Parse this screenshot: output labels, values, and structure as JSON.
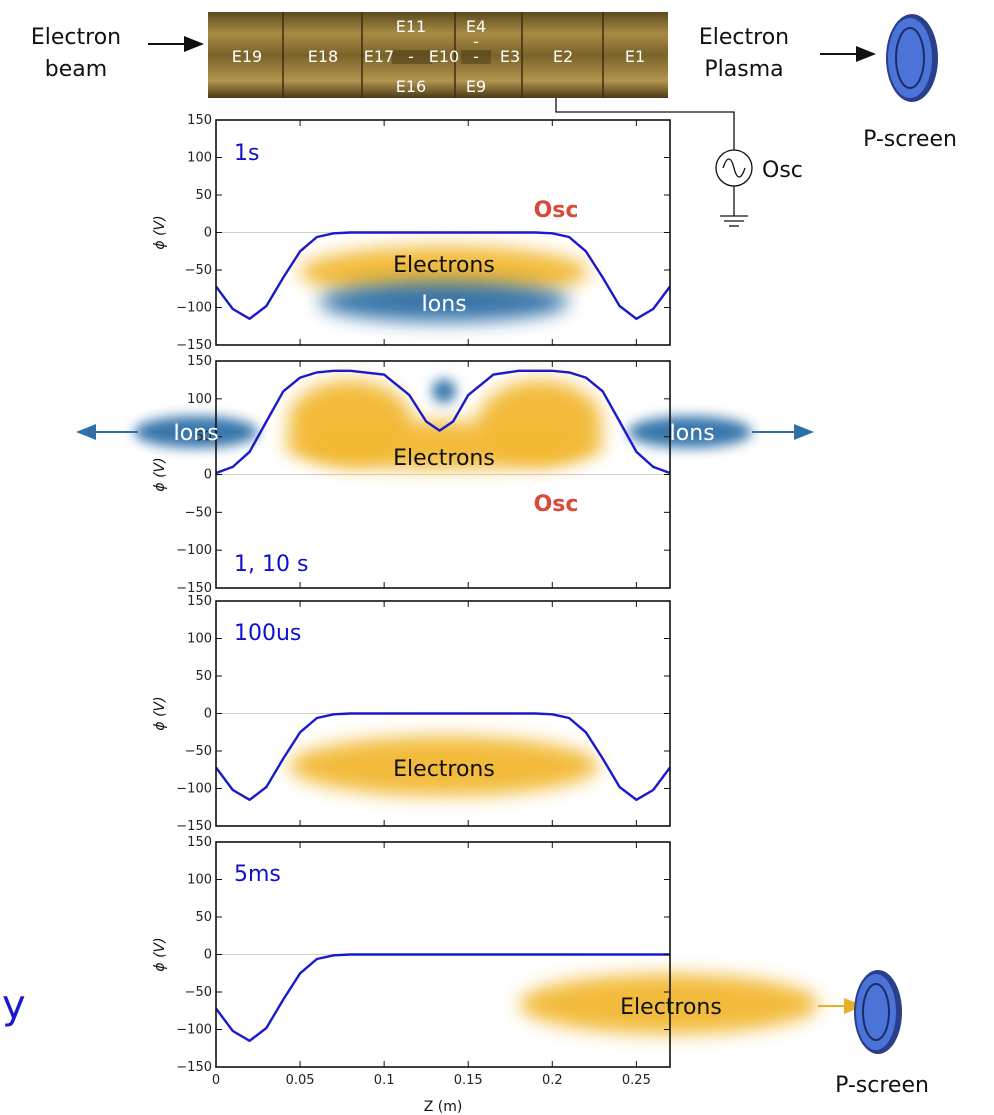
{
  "header": {
    "left_label_lines": [
      "Electron",
      "beam"
    ],
    "right_label_lines": [
      "Electron",
      "Plasma"
    ],
    "screen_label": "P-screen",
    "osc_label": "Osc",
    "electrodes": [
      {
        "label": "E19"
      },
      {
        "label": "E18"
      },
      {
        "label": "E17"
      },
      {
        "label": "E11"
      },
      {
        "label": "-"
      },
      {
        "label": "E16"
      },
      {
        "label": "E10"
      },
      {
        "label": "-"
      },
      {
        "label": "E4"
      },
      {
        "label": "-"
      },
      {
        "label": "E9"
      },
      {
        "label": "E3"
      },
      {
        "label": "E2"
      },
      {
        "label": "E1"
      }
    ]
  },
  "footer": {
    "screen_label": "P-screen",
    "cut_text": "y"
  },
  "colors": {
    "curve": "#1a1acc",
    "panel_label": "#1010cc",
    "osc_red": "#d94a3a",
    "electron_cloud": "#f2b830",
    "ion_cloud": "#2f6fa8",
    "screen_blue": "#4b73d8"
  },
  "chart_data": [
    {
      "type": "line",
      "panel_label": "1s",
      "ylabel": "ϕ (V)",
      "xlim": [
        0,
        0.27
      ],
      "ylim": [
        -150,
        150
      ],
      "yticks": [
        150,
        100,
        50,
        0,
        -50,
        -100,
        -150
      ],
      "xticks": [],
      "annotations": [
        "Osc",
        "Electrons",
        "Ions"
      ],
      "x": [
        0,
        0.01,
        0.02,
        0.03,
        0.04,
        0.05,
        0.06,
        0.07,
        0.08,
        0.1,
        0.13,
        0.16,
        0.19,
        0.2,
        0.21,
        0.22,
        0.23,
        0.24,
        0.25,
        0.26,
        0.27
      ],
      "y": [
        -72,
        -102,
        -115,
        -98,
        -60,
        -25,
        -6,
        -1,
        0,
        0,
        0,
        0,
        0,
        -1,
        -6,
        -25,
        -60,
        -98,
        -115,
        -102,
        -72
      ]
    },
    {
      "type": "line",
      "panel_label": "1, 10 s",
      "ylabel": "ϕ (V)",
      "xlim": [
        0,
        0.27
      ],
      "ylim": [
        -150,
        150
      ],
      "yticks": [
        150,
        100,
        50,
        0,
        -50,
        -100,
        -150
      ],
      "xticks": [],
      "annotations": [
        "Ions",
        "Ions",
        "Electrons",
        "Osc"
      ],
      "x": [
        0,
        0.01,
        0.02,
        0.03,
        0.04,
        0.05,
        0.06,
        0.07,
        0.08,
        0.1,
        0.115,
        0.125,
        0.133,
        0.141,
        0.15,
        0.165,
        0.18,
        0.2,
        0.21,
        0.22,
        0.23,
        0.24,
        0.25,
        0.26,
        0.27
      ],
      "y": [
        2,
        10,
        30,
        70,
        110,
        128,
        135,
        137,
        137,
        132,
        105,
        70,
        58,
        70,
        105,
        132,
        137,
        137,
        135,
        128,
        110,
        70,
        30,
        10,
        2
      ]
    },
    {
      "type": "line",
      "panel_label": "100us",
      "ylabel": "ϕ (V)",
      "xlim": [
        0,
        0.27
      ],
      "ylim": [
        -150,
        150
      ],
      "yticks": [
        150,
        100,
        50,
        0,
        -50,
        -100,
        -150
      ],
      "xticks": [],
      "annotations": [
        "Electrons"
      ],
      "x": [
        0,
        0.01,
        0.02,
        0.03,
        0.04,
        0.05,
        0.06,
        0.07,
        0.08,
        0.1,
        0.13,
        0.16,
        0.19,
        0.2,
        0.21,
        0.22,
        0.23,
        0.24,
        0.25,
        0.26,
        0.27
      ],
      "y": [
        -72,
        -102,
        -115,
        -98,
        -60,
        -25,
        -6,
        -1,
        0,
        0,
        0,
        0,
        0,
        -1,
        -6,
        -25,
        -60,
        -98,
        -115,
        -102,
        -72
      ]
    },
    {
      "type": "line",
      "panel_label": "5ms",
      "ylabel": "ϕ (V)",
      "xlabel": "Z (m)",
      "xlim": [
        0,
        0.27
      ],
      "ylim": [
        -150,
        150
      ],
      "yticks": [
        150,
        100,
        50,
        0,
        -50,
        -100,
        -150
      ],
      "xticks": [
        0,
        0.05,
        0.1,
        0.15,
        0.2,
        0.25
      ],
      "xticklabels": [
        "0",
        "0.05",
        "0.1",
        "0.15",
        "0.2",
        "0.25"
      ],
      "annotations": [
        "Electrons"
      ],
      "x": [
        0,
        0.01,
        0.02,
        0.03,
        0.04,
        0.05,
        0.06,
        0.07,
        0.08,
        0.1,
        0.15,
        0.2,
        0.27
      ],
      "y": [
        -72,
        -102,
        -115,
        -98,
        -60,
        -25,
        -6,
        -1,
        0,
        0,
        0,
        0,
        0
      ]
    }
  ]
}
